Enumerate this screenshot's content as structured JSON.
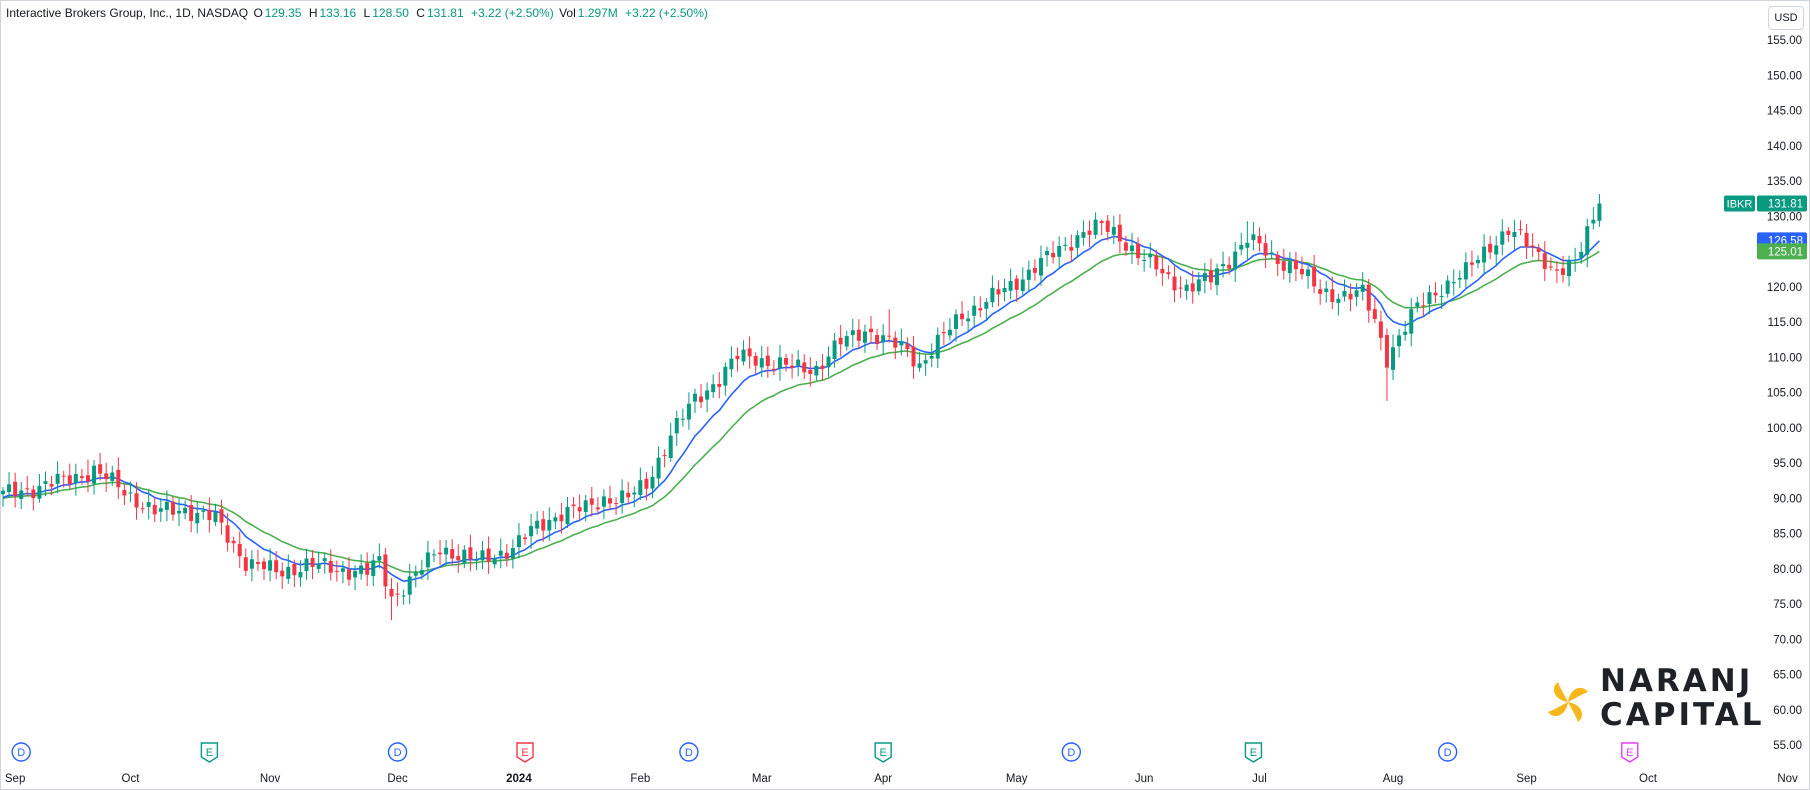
{
  "header": {
    "symbol_line": "Interactive Brokers Group, Inc., 1D, NASDAQ",
    "open_label": "O",
    "open": "129.35",
    "high_label": "H",
    "high": "133.16",
    "low_label": "L",
    "low": "128.50",
    "close_label": "C",
    "close": "131.81",
    "change": "+3.22 (+2.50%)",
    "vol_label": "Vol",
    "volume": "1.297M",
    "vol_change": "+3.22 (+2.50%)"
  },
  "currency": "USD",
  "logo": {
    "line1": "NARANJ",
    "line2": "CAPITAL"
  },
  "colors": {
    "up": "#089981",
    "down": "#f23645",
    "ema_fast": "#2962ff",
    "ema_slow": "#4caf50",
    "dividend": "#2962ff",
    "earnings": "#089981",
    "earnings_future": "#f23645",
    "earnings_upcoming": "#e040fb"
  },
  "chart_data": {
    "type": "candlestick",
    "title": "Interactive Brokers Group, Inc., 1D, NASDAQ",
    "ylim": [
      52.5,
      158.5
    ],
    "y_ticks": [
      "55.00",
      "60.00",
      "65.00",
      "70.00",
      "75.00",
      "80.00",
      "85.00",
      "90.00",
      "95.00",
      "100.00",
      "105.00",
      "110.00",
      "115.00",
      "120.00",
      "125.00",
      "130.00",
      "135.00",
      "140.00",
      "145.00",
      "150.00",
      "155.00"
    ],
    "x_ticks": [
      {
        "label": "Sep",
        "bar": 2
      },
      {
        "label": "Oct",
        "bar": 21
      },
      {
        "label": "Nov",
        "bar": 44
      },
      {
        "label": "Dec",
        "bar": 65
      },
      {
        "label": "2024",
        "bar": 85,
        "bold": true
      },
      {
        "label": "Feb",
        "bar": 105
      },
      {
        "label": "Mar",
        "bar": 125
      },
      {
        "label": "Apr",
        "bar": 145
      },
      {
        "label": "May",
        "bar": 167
      },
      {
        "label": "Jun",
        "bar": 188
      },
      {
        "label": "Jul",
        "bar": 207
      },
      {
        "label": "Aug",
        "bar": 229
      },
      {
        "label": "Sep",
        "bar": 251
      },
      {
        "label": "Oct",
        "bar": 271
      },
      {
        "label": "Nov",
        "bar": 294
      }
    ],
    "event_markers": [
      {
        "type": "dividend",
        "label": "D",
        "bar": 3
      },
      {
        "type": "earnings",
        "label": "E",
        "bar": 34
      },
      {
        "type": "dividend",
        "label": "D",
        "bar": 65
      },
      {
        "type": "earnings_future",
        "label": "E",
        "bar": 86
      },
      {
        "type": "dividend",
        "label": "D",
        "bar": 113
      },
      {
        "type": "earnings",
        "label": "E",
        "bar": 145
      },
      {
        "type": "dividend",
        "label": "D",
        "bar": 176
      },
      {
        "type": "earnings",
        "label": "E",
        "bar": 206
      },
      {
        "type": "dividend",
        "label": "D",
        "bar": 238
      },
      {
        "type": "earnings_upcoming",
        "label": "E",
        "bar": 268
      }
    ],
    "path_anchors": [
      [
        0,
        90.5
      ],
      [
        10,
        92.5
      ],
      [
        15,
        94
      ],
      [
        20,
        91
      ],
      [
        25,
        88
      ],
      [
        30,
        88.5
      ],
      [
        35,
        87
      ],
      [
        40,
        81
      ],
      [
        45,
        79.5
      ],
      [
        50,
        80.5
      ],
      [
        55,
        80
      ],
      [
        60,
        79.5
      ],
      [
        62,
        81
      ],
      [
        64,
        76
      ],
      [
        68,
        79
      ],
      [
        72,
        83
      ],
      [
        78,
        81
      ],
      [
        84,
        83
      ],
      [
        88,
        86
      ],
      [
        92,
        88
      ],
      [
        96,
        88.5
      ],
      [
        99,
        90
      ],
      [
        103,
        90
      ],
      [
        106,
        92
      ],
      [
        110,
        99
      ],
      [
        114,
        104
      ],
      [
        118,
        107
      ],
      [
        121,
        110
      ],
      [
        124,
        110
      ],
      [
        127,
        109
      ],
      [
        130,
        108.5
      ],
      [
        134,
        108.5
      ],
      [
        138,
        112
      ],
      [
        142,
        114
      ],
      [
        146,
        112
      ],
      [
        149,
        111
      ],
      [
        151,
        109
      ],
      [
        154,
        112
      ],
      [
        158,
        116
      ],
      [
        162,
        118
      ],
      [
        166,
        120
      ],
      [
        170,
        123
      ],
      [
        174,
        125
      ],
      [
        178,
        128
      ],
      [
        181,
        128.5
      ],
      [
        184,
        127
      ],
      [
        188,
        124
      ],
      [
        192,
        121
      ],
      [
        195,
        120
      ],
      [
        199,
        121
      ],
      [
        202,
        124
      ],
      [
        205,
        127
      ],
      [
        209,
        124
      ],
      [
        213,
        123
      ],
      [
        217,
        119
      ],
      [
        221,
        119
      ],
      [
        224,
        119
      ],
      [
        226,
        115
      ],
      [
        228,
        110
      ],
      [
        230,
        113
      ],
      [
        233,
        117
      ],
      [
        237,
        120
      ],
      [
        241,
        122
      ],
      [
        245,
        126
      ],
      [
        248,
        128
      ],
      [
        251,
        126
      ],
      [
        254,
        124
      ],
      [
        256,
        122
      ],
      [
        259,
        123
      ],
      [
        261,
        128
      ],
      [
        263,
        131.8
      ]
    ],
    "last_bar": 263,
    "last_candle": {
      "open": 129.35,
      "high": 133.16,
      "low": 128.5,
      "close": 131.81
    },
    "series": [
      {
        "name": "IBKR",
        "value": "131.81",
        "type": "candlestick"
      },
      {
        "name": "EMA",
        "value": "126.58",
        "color": "#2962ff"
      },
      {
        "name": "EMA",
        "value": "125.01",
        "color": "#4caf50"
      }
    ],
    "ema_fast_period": 10,
    "ema_slow_period": 21,
    "grid": false
  }
}
